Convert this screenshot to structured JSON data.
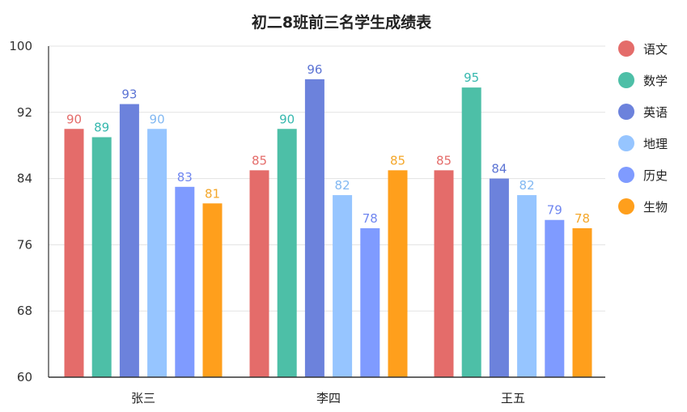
{
  "chart_data": {
    "type": "bar",
    "title": "初二8班前三名学生成绩表",
    "categories": [
      "张三",
      "李四",
      "王五"
    ],
    "series": [
      {
        "name": "语文",
        "color": "#E46C6A",
        "values": [
          90,
          85,
          85
        ]
      },
      {
        "name": "数学",
        "color": "#4DBFA7",
        "values": [
          89,
          90,
          95
        ]
      },
      {
        "name": "英语",
        "color": "#6C82DC",
        "values": [
          93,
          96,
          84
        ]
      },
      {
        "name": "地理",
        "color": "#96C5FF",
        "values": [
          90,
          82,
          82
        ]
      },
      {
        "name": "历史",
        "color": "#7F9BFF",
        "values": [
          83,
          78,
          79
        ]
      },
      {
        "name": "生物",
        "color": "#FF9F1C",
        "values": [
          81,
          85,
          78
        ]
      }
    ],
    "label_colors": [
      "#E46C6A",
      "#36B8AE",
      "#5C74D4",
      "#82B8F2",
      "#6F86F0",
      "#F4A72A"
    ],
    "y_ticks": [
      "60",
      "68",
      "76",
      "84",
      "92",
      "100"
    ],
    "ylim": [
      60,
      100
    ],
    "grid": true,
    "legend": "right"
  }
}
